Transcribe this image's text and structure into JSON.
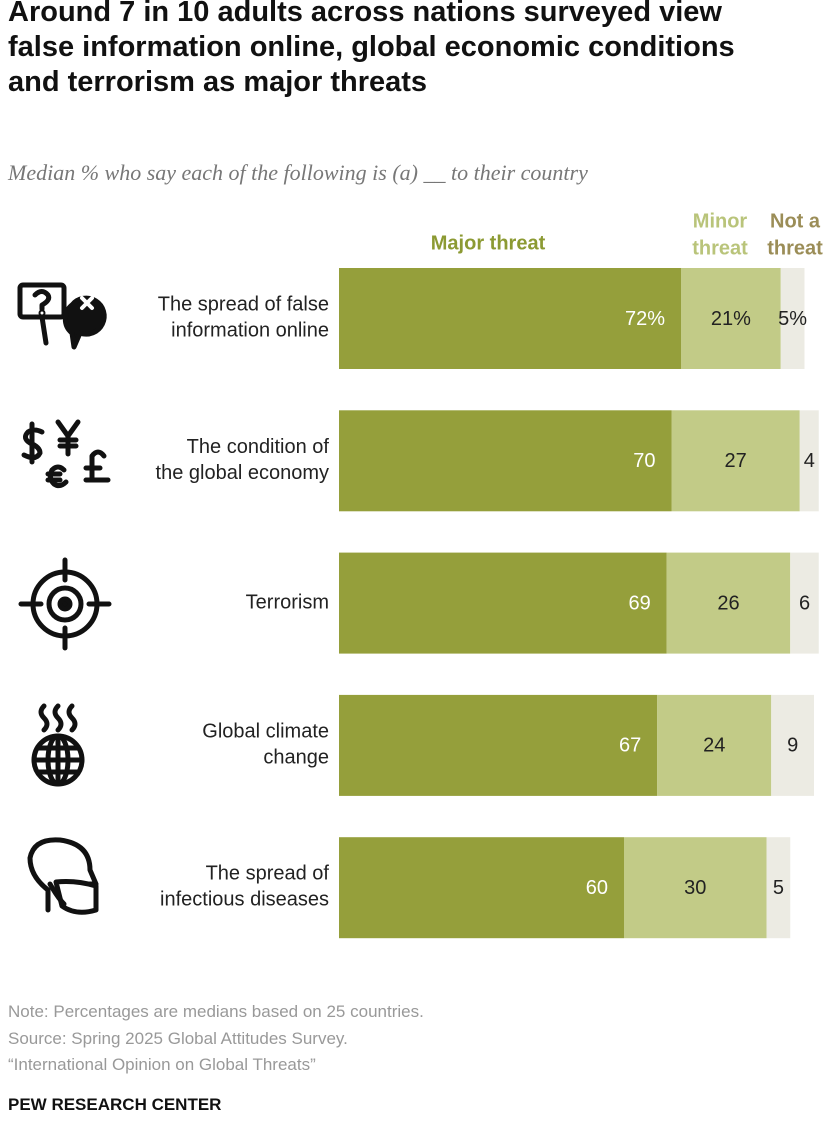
{
  "chart_data": {
    "type": "stacked_bar_horizontal",
    "title": "Around 7 in 10 adults across nations surveyed view\nfalse information online, global economic conditions\nand terrorism as major threats",
    "subtitle": "Median % who say each of the following is (a) __ to their country",
    "categories": [
      "The spread of false\ninformation online",
      "The condition of\nthe global economy",
      "Terrorism",
      "Global climate\nchange",
      "The spread of\ninfectious diseases"
    ],
    "series": [
      {
        "name": "Major threat",
        "color": "#959f3b",
        "label_color": "#8c9a33",
        "values": [
          72,
          70,
          69,
          67,
          60
        ],
        "value_labels": [
          "72%",
          "70",
          "69",
          "67",
          "60"
        ]
      },
      {
        "name": "Minor\nthreat",
        "color": "#c2cb87",
        "label_color": "#b9c47a",
        "values": [
          21,
          27,
          26,
          24,
          30
        ],
        "value_labels": [
          "21%",
          "27",
          "26",
          "24",
          "30"
        ]
      },
      {
        "name": "Not a\nthreat",
        "color": "#ecebe3",
        "label_color": "#9b8d57",
        "values": [
          5,
          4,
          6,
          9,
          5
        ],
        "value_labels": [
          "5%",
          "4",
          "6",
          "9",
          "5"
        ]
      }
    ],
    "xlim": [
      0,
      100
    ],
    "note": "Note: Percentages are medians based on 25 countries.",
    "source": "Source: Spring 2025 Global Attitudes Survey.",
    "report": "“International Opinion on Global Threats”",
    "footer": "PEW RESEARCH CENTER"
  }
}
